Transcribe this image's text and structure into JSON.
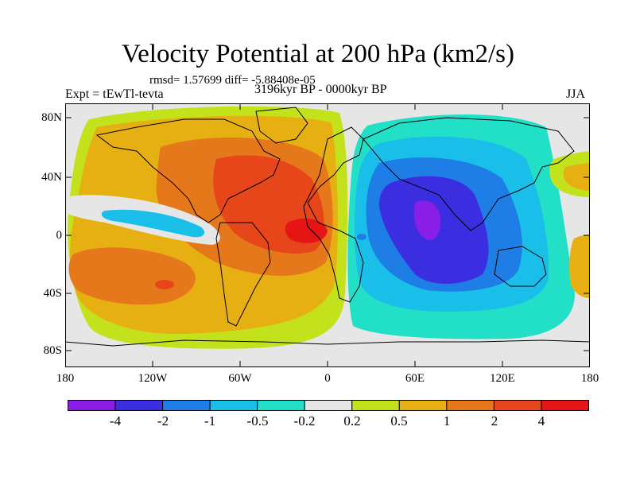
{
  "figure": {
    "title": "Velocity Potential at 200 hPa (km2/s)",
    "stats": "rmsd= 1.57699 diff= -5.88408e-05",
    "left_label": "Expt = tEwTl-tevta",
    "center_label": "3196kyr BP - 0000kyr BP",
    "right_label": "JJA"
  },
  "axes": {
    "lat_ticks": [
      "80N",
      "40N",
      "0",
      "40S",
      "80S"
    ],
    "lon_ticks": [
      "180",
      "120W",
      "60W",
      "0",
      "60E",
      "120E",
      "180"
    ]
  },
  "colorbar": {
    "labels": [
      "-4",
      "-2",
      "-1",
      "-0.5",
      "-0.2",
      "0.2",
      "0.5",
      "1",
      "2",
      "4"
    ],
    "colors": [
      "#8a1ee6",
      "#3a2ee0",
      "#1e7ee6",
      "#19bfe8",
      "#22e0c8",
      "#e6e6e6",
      "#c4e21c",
      "#e6b012",
      "#e6781c",
      "#e6461a",
      "#e61414"
    ]
  },
  "map_colors": {
    "background": "#e6e6e6",
    "pos_1": "#c4e21c",
    "pos_2": "#e6b012",
    "pos_3": "#e6781c",
    "pos_4": "#e6461a",
    "pos_5": "#e61414",
    "neg_1": "#22e0c8",
    "neg_2": "#19bfe8",
    "neg_3": "#1e7ee6",
    "neg_4": "#3a2ee0",
    "neg_5": "#8a1ee6"
  }
}
